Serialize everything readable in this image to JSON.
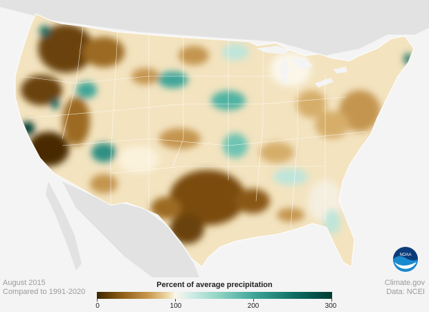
{
  "footer": {
    "date_line": "August 2015",
    "compare_line": "Compared to 1991-2020",
    "source_line": "Climate.gov",
    "data_line": "Data: NCEI"
  },
  "legend": {
    "title": "Percent of average precipitation",
    "ticks": [
      "0",
      "100",
      "200",
      "300"
    ],
    "range": [
      0,
      300
    ]
  },
  "logo": {
    "name": "noaa-logo",
    "text": "NOAA"
  },
  "colors": {
    "dry": "#6b4208",
    "normal": "#fbf6e8",
    "wet": "#0d6a60",
    "background": "#f4f4f4",
    "land_outside": "#e3e3e3"
  }
}
